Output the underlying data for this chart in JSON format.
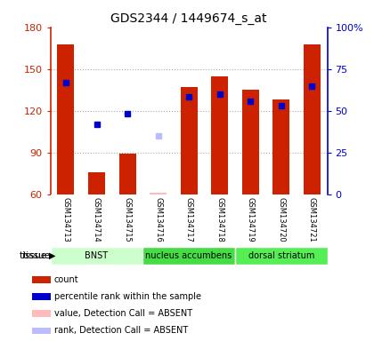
{
  "title": "GDS2344 / 1449674_s_at",
  "samples": [
    "GSM134713",
    "GSM134714",
    "GSM134715",
    "GSM134716",
    "GSM134717",
    "GSM134718",
    "GSM134719",
    "GSM134720",
    "GSM134721"
  ],
  "count_values": [
    168,
    76,
    89,
    61,
    137,
    145,
    135,
    128,
    168
  ],
  "count_absent": [
    false,
    false,
    false,
    true,
    false,
    false,
    false,
    false,
    false
  ],
  "percentile_values": [
    140,
    110,
    118,
    102,
    130,
    132,
    127,
    124,
    138
  ],
  "percentile_absent": [
    false,
    false,
    false,
    true,
    false,
    false,
    false,
    false,
    false
  ],
  "ylim_left": [
    60,
    180
  ],
  "ylim_right": [
    0,
    100
  ],
  "yticks_left": [
    60,
    90,
    120,
    150,
    180
  ],
  "yticks_right": [
    0,
    25,
    50,
    75,
    100
  ],
  "ytick_labels_left": [
    "60",
    "90",
    "120",
    "150",
    "180"
  ],
  "ytick_labels_right": [
    "0",
    "25",
    "50",
    "75",
    "100%"
  ],
  "tissue_groups": [
    {
      "label": "BNST",
      "start": 0,
      "end": 3,
      "color": "#ccffcc"
    },
    {
      "label": "nucleus accumbens",
      "start": 3,
      "end": 6,
      "color": "#44dd44"
    },
    {
      "label": "dorsal striatum",
      "start": 6,
      "end": 9,
      "color": "#55ee55"
    }
  ],
  "bar_color": "#cc2200",
  "bar_absent_color": "#ffbbbb",
  "rank_color": "#0000cc",
  "rank_absent_color": "#bbbbff",
  "bar_width": 0.55,
  "legend_items": [
    {
      "color": "#cc2200",
      "label": "count"
    },
    {
      "color": "#0000cc",
      "label": "percentile rank within the sample"
    },
    {
      "color": "#ffbbbb",
      "label": "value, Detection Call = ABSENT"
    },
    {
      "color": "#bbbbff",
      "label": "rank, Detection Call = ABSENT"
    }
  ],
  "tissue_arrow_label": "tissue",
  "left_axis_color": "#cc2200",
  "right_axis_color": "#0000cc",
  "background_color": "#ffffff",
  "sample_box_color": "#cccccc",
  "dotted_line_color": "#aaaaaa"
}
